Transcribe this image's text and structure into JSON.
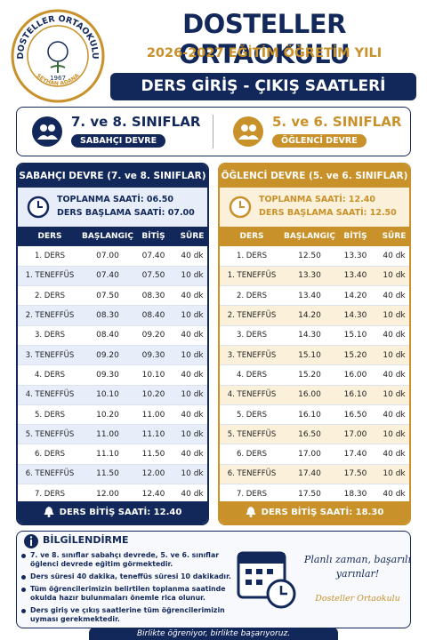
{
  "header": {
    "logo": {
      "name": "DOSTELLER ORTAOKULU",
      "year": "1967",
      "place": "SEYHAN ADANA"
    },
    "school_name": "DOSTELLER ORTAOKULU",
    "year": "2026-2027 EĞİTİM ÖĞRETİM YILI",
    "banner": "DERS GİRİŞ - ÇIKIŞ SAATLERİ"
  },
  "groups": [
    {
      "title": "7. ve 8. SINIFLAR",
      "shift": "SABAHÇI DEVRE"
    },
    {
      "title": "5. ve 6. SINIFLAR",
      "shift": "ÖĞLENCİ DEVRE"
    }
  ],
  "schedules": [
    {
      "title": "SABAHÇI DEVRE (7. ve 8. SINIFLAR)",
      "gathering": "TOPLANMA SAATİ: 06.50",
      "start": "DERS BAŞLAMA SAATİ: 07.00",
      "columns": [
        "DERS",
        "BAŞLANGIÇ",
        "BİTİŞ",
        "SÜRE"
      ],
      "rows": [
        [
          "1. DERS",
          "07.00",
          "07.40",
          "40 dk"
        ],
        [
          "1. TENEFFÜS",
          "07.40",
          "07.50",
          "10 dk"
        ],
        [
          "2. DERS",
          "07.50",
          "08.30",
          "40 dk"
        ],
        [
          "2. TENEFFÜS",
          "08.30",
          "08.40",
          "10 dk"
        ],
        [
          "3. DERS",
          "08.40",
          "09.20",
          "40 dk"
        ],
        [
          "3. TENEFFÜS",
          "09.20",
          "09.30",
          "10 dk"
        ],
        [
          "4. DERS",
          "09.30",
          "10.10",
          "40 dk"
        ],
        [
          "4. TENEFFÜS",
          "10.10",
          "10.20",
          "10 dk"
        ],
        [
          "5. DERS",
          "10.20",
          "11.00",
          "40 dk"
        ],
        [
          "5. TENEFFÜS",
          "11.00",
          "11.10",
          "10 dk"
        ],
        [
          "6. DERS",
          "11.10",
          "11.50",
          "40 dk"
        ],
        [
          "6. TENEFFÜS",
          "11.50",
          "12.00",
          "10 dk"
        ],
        [
          "7. DERS",
          "12.00",
          "12.40",
          "40 dk"
        ]
      ],
      "end": "DERS BİTİŞ SAATİ: 12.40"
    },
    {
      "title": "ÖĞLENCİ DEVRE (5. ve 6. SINIFLAR)",
      "gathering": "TOPLANMA SAATİ: 12.40",
      "start": "DERS BAŞLAMA SAATİ: 12.50",
      "columns": [
        "DERS",
        "BAŞLANGIÇ",
        "BİTİŞ",
        "SÜRE"
      ],
      "rows": [
        [
          "1. DERS",
          "12.50",
          "13.30",
          "40 dk"
        ],
        [
          "1. TENEFFÜS",
          "13.30",
          "13.40",
          "10 dk"
        ],
        [
          "2. DERS",
          "13.40",
          "14.20",
          "40 dk"
        ],
        [
          "2. TENEFFÜS",
          "14.20",
          "14.30",
          "10 dk"
        ],
        [
          "3. DERS",
          "14.30",
          "15.10",
          "40 dk"
        ],
        [
          "3. TENEFFÜS",
          "15.10",
          "15.20",
          "10 dk"
        ],
        [
          "4. DERS",
          "15.20",
          "16.00",
          "40 dk"
        ],
        [
          "4. TENEFFÜS",
          "16.00",
          "16.10",
          "10 dk"
        ],
        [
          "5. DERS",
          "16.10",
          "16.50",
          "40 dk"
        ],
        [
          "5. TENEFFÜS",
          "16.50",
          "17.00",
          "10 dk"
        ],
        [
          "6. DERS",
          "17.00",
          "17.40",
          "40 dk"
        ],
        [
          "6. TENEFFÜS",
          "17.40",
          "17.50",
          "10 dk"
        ],
        [
          "7. DERS",
          "17.50",
          "18.30",
          "40 dk"
        ]
      ],
      "end": "DERS BİTİŞ SAATİ: 18.30"
    }
  ],
  "info": {
    "title": "BİLGİLENDİRME",
    "items": [
      "7. ve 8. sınıflar sabahçı devrede, 5. ve 6. sınıflar öğlenci devrede eğitim görmektedir.",
      "Ders süresi 40 dakika, teneffüs süresi 10 dakikadır.",
      "Tüm öğrencilerimizin belirtilen toplanma saatinde okulda hazır bulunmaları önemle rica olunur.",
      "Ders giriş ve çıkış saatlerine tüm öğrencilerimizin uyması gerekmektedir."
    ],
    "slogan": "Planlı zaman, başarılı yarınlar!",
    "signature": "Dosteller Ortaokulu"
  },
  "footer": "Birlikte öğreniyor, birlikte başarıyoruz."
}
